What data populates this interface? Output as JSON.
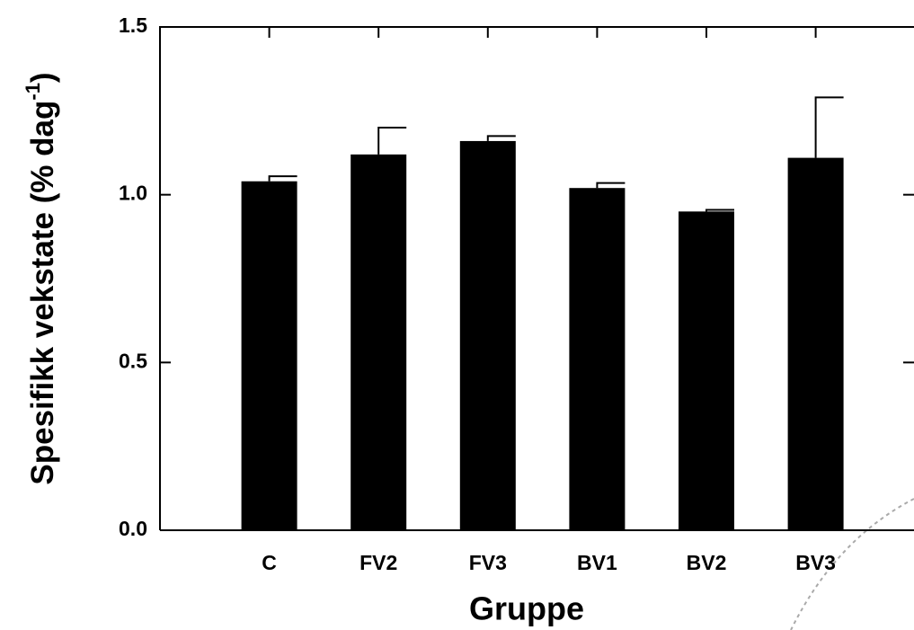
{
  "chart_data": {
    "type": "bar",
    "x_label": "Gruppe",
    "y_label": {
      "text": "Spesifikk vekstate (% dag",
      "superscript": "-1",
      "suffix": ")"
    },
    "categories": [
      "C",
      "FV2",
      "FV3",
      "BV1",
      "BV2",
      "BV3"
    ],
    "values": [
      1.04,
      1.12,
      1.16,
      1.02,
      0.95,
      1.11
    ],
    "errors": [
      0.015,
      0.08,
      0.015,
      0.015,
      0.005,
      0.18
    ],
    "color": "#000000",
    "ylim": [
      0,
      1.5
    ],
    "yticks": [
      {
        "value": 0,
        "label": "0.0"
      },
      0.5,
      {
        "value": 1,
        "label": "1.0"
      },
      1.5
    ],
    "grid": false
  }
}
